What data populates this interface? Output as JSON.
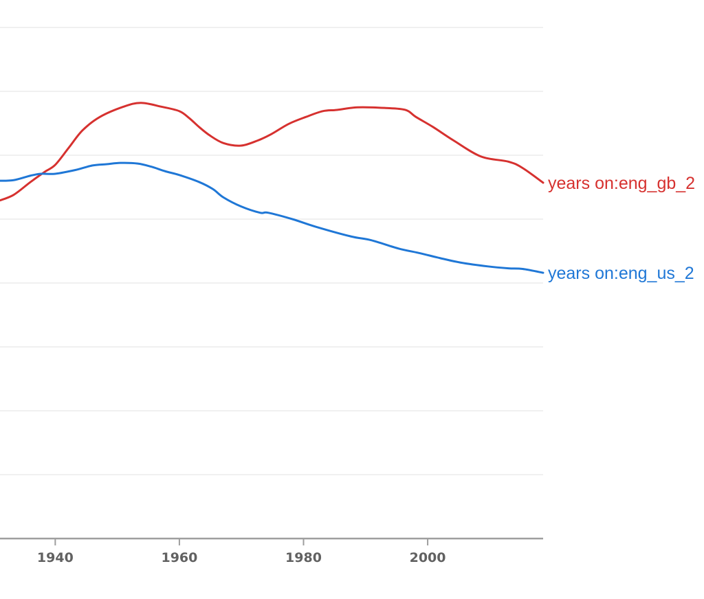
{
  "chart_data": {
    "type": "line",
    "title": "",
    "xlabel": "",
    "ylabel": "",
    "y_units_note": "relative frequency (gridline units; y-axis labels not visible)",
    "xlim": [
      1931.1,
      2018.6
    ],
    "ylim": [
      0,
      8
    ],
    "grid": true,
    "x_ticks": [
      "1940",
      "1960",
      "1980",
      "2000"
    ],
    "x_tick_values": [
      1940,
      1960,
      1980,
      2000
    ],
    "y_gridlines": [
      1,
      2,
      3,
      4,
      5,
      6,
      7,
      8
    ],
    "legend": "inline-right",
    "series": [
      {
        "name": "years on:eng_gb_2",
        "color": "#d6312f",
        "x": [
          1931,
          1933.3,
          1936,
          1938.3,
          1940,
          1942.2,
          1944.4,
          1947.2,
          1951,
          1953.8,
          1957.1,
          1960,
          1961.6,
          1963.2,
          1964.9,
          1967.1,
          1969.9,
          1972.6,
          1974.8,
          1977.6,
          1980.4,
          1983.1,
          1985.4,
          1988.7,
          1993.1,
          1996.4,
          1998.1,
          2000.9,
          2004.2,
          2008.6,
          2013,
          2015.3,
          2018.6
        ],
        "values": [
          5.29,
          5.38,
          5.58,
          5.74,
          5.85,
          6.12,
          6.39,
          6.6,
          6.76,
          6.82,
          6.76,
          6.69,
          6.58,
          6.44,
          6.31,
          6.19,
          6.15,
          6.23,
          6.33,
          6.49,
          6.6,
          6.69,
          6.71,
          6.75,
          6.74,
          6.71,
          6.6,
          6.44,
          6.23,
          5.98,
          5.9,
          5.8,
          5.57
        ]
      },
      {
        "name": "years on:eng_us_2",
        "color": "#1f77d6",
        "x": [
          1931,
          1933.3,
          1936,
          1937.7,
          1940,
          1943.3,
          1946,
          1948.3,
          1950.5,
          1953.3,
          1955.5,
          1957.7,
          1960,
          1963.2,
          1965.4,
          1967.1,
          1969.9,
          1973,
          1974.3,
          1978.2,
          1982,
          1987.6,
          1990.9,
          1995.3,
          1998.6,
          2002,
          2005.3,
          2009.7,
          2013,
          2015.3,
          2018.6
        ],
        "values": [
          5.6,
          5.61,
          5.68,
          5.71,
          5.71,
          5.77,
          5.84,
          5.86,
          5.88,
          5.87,
          5.82,
          5.75,
          5.69,
          5.58,
          5.47,
          5.34,
          5.2,
          5.1,
          5.1,
          5.0,
          4.88,
          4.73,
          4.67,
          4.54,
          4.47,
          4.39,
          4.32,
          4.26,
          4.23,
          4.22,
          4.16
        ]
      }
    ]
  }
}
